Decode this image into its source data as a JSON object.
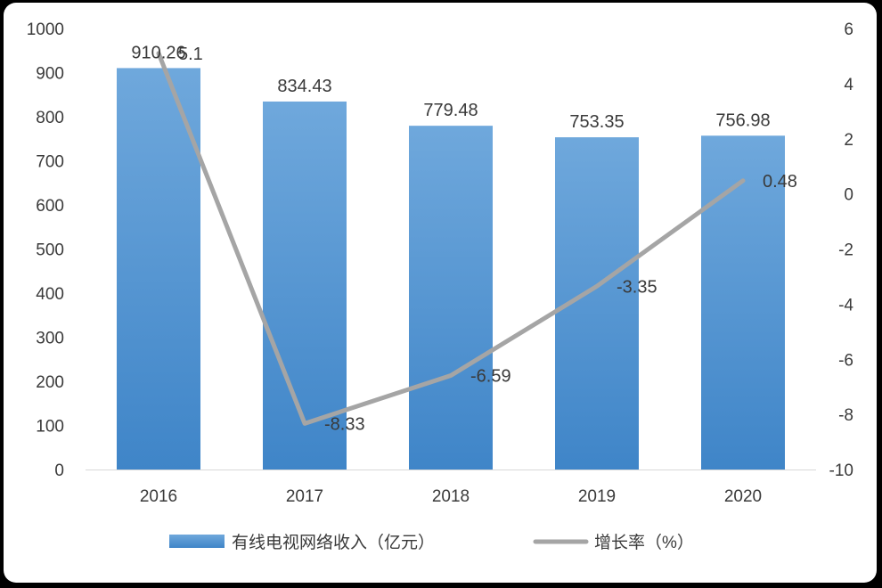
{
  "chart_data": {
    "type": "bar",
    "categories": [
      "2016",
      "2017",
      "2018",
      "2019",
      "2020"
    ],
    "series": [
      {
        "name": "有线电视网络收入（亿元）",
        "type": "bar",
        "axis": "left",
        "values": [
          910.26,
          834.43,
          779.48,
          753.35,
          756.98
        ],
        "labels": [
          "910.26",
          "834.43",
          "779.48",
          "753.35",
          "756.98"
        ],
        "color": "#5b9bd5"
      },
      {
        "name": "增长率（%）",
        "type": "line",
        "axis": "right",
        "values": [
          5.1,
          -8.33,
          -6.59,
          -3.35,
          0.48
        ],
        "labels": [
          "5.1",
          "-8.33",
          "-6.59",
          "-3.35",
          "0.48"
        ],
        "color": "#a5a5a5"
      }
    ],
    "y_left": {
      "ylim": [
        0,
        1000
      ],
      "ticks": [
        "0",
        "100",
        "200",
        "300",
        "400",
        "500",
        "600",
        "700",
        "800",
        "900",
        "1000"
      ]
    },
    "y_right": {
      "ylim": [
        -10,
        6
      ],
      "ticks": [
        "-10",
        "-8",
        "-6",
        "-4",
        "-2",
        "0",
        "2",
        "4",
        "6"
      ]
    },
    "grid": false,
    "legend_position": "bottom"
  }
}
